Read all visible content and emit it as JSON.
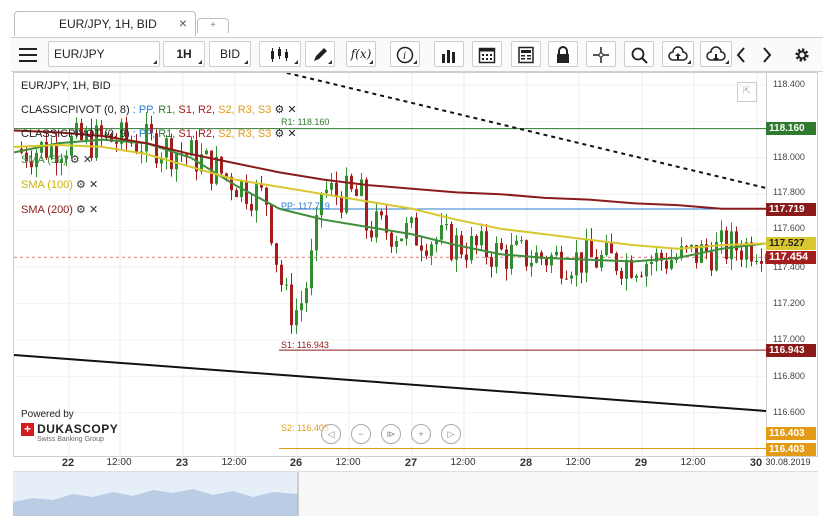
{
  "tab": {
    "title": "EUR/JPY, 1H, BID",
    "close": "×",
    "new_tab": "+"
  },
  "toolbar": {
    "instrument": "EUR/JPY",
    "period": "1H",
    "side": "BID"
  },
  "chart": {
    "title": "EUR/JPY, 1H, BID",
    "pivot1": {
      "name": "CLASSICPIVOT",
      "params": "(0, 8)",
      "sep": ":",
      "levels": [
        "PP,",
        "R1,",
        "S1,",
        "R2,",
        "S2,",
        "R3,",
        "S3"
      ]
    },
    "pivot2": {
      "name": "CLASSICPIVOT",
      "params": "(0, 9)",
      "sep": ":",
      "levels": [
        "PP,",
        "R1,",
        "S1,",
        "R2,",
        "S2,",
        "R3,",
        "S3"
      ]
    },
    "sma50": "SMA (50)",
    "sma100": "SMA (100)",
    "sma200": "SMA (200)",
    "colors": {
      "sma50": "#3e8e3a",
      "sma100": "#d8c72e",
      "sma200": "#8b1a1a",
      "pp": "#2b7bd6",
      "r1": "#2f7a2f",
      "s1": "#8b1a1a",
      "s2": "#e39b16",
      "bull": "#2f8f2f",
      "bear": "#a31d1d"
    },
    "y_ticks": [
      "118.400",
      "118.200",
      "118.000",
      "117.800",
      "117.600",
      "117.400",
      "117.200",
      "117.000",
      "116.800",
      "116.600"
    ],
    "price_tags": {
      "r1": "118.160",
      "sma200": "117.719",
      "sma50": "117.527",
      "last": "117.454",
      "s1": "116.943",
      "s2a": "116.403",
      "s2b": "116.403"
    },
    "level_labels": {
      "r1": "R1: 118.160",
      "pp": "PP: 117.719",
      "s1": "S1: 116.943",
      "s2": "S2: 116.403"
    },
    "x_ticks": [
      {
        "label": "22",
        "bold": true
      },
      {
        "label": "12:00",
        "bold": false
      },
      {
        "label": "23",
        "bold": true
      },
      {
        "label": "12:00",
        "bold": false
      },
      {
        "label": "26",
        "bold": true
      },
      {
        "label": "12:00",
        "bold": false
      },
      {
        "label": "27",
        "bold": true
      },
      {
        "label": "12:00",
        "bold": false
      },
      {
        "label": "28",
        "bold": true
      },
      {
        "label": "12:00",
        "bold": false
      },
      {
        "label": "29",
        "bold": true
      },
      {
        "label": "12:00",
        "bold": false
      },
      {
        "label": "30",
        "bold": true
      },
      {
        "label": "30.08.2019",
        "bold": false
      }
    ],
    "powered_by": "Powered by",
    "brand": "DUKASCOPY",
    "brand_sub": "Swiss Banking Group"
  },
  "chart_data": {
    "type": "candlestick",
    "title": "EUR/JPY, 1H, BID",
    "ylim": [
      116.5,
      118.45
    ],
    "series": [
      {
        "name": "SMA (50)",
        "values": [
          118.03,
          118.08,
          118.1,
          118.08,
          118.0,
          117.85,
          117.72,
          117.66,
          117.62,
          117.58,
          117.52,
          117.47,
          117.45,
          117.44,
          117.43,
          117.45,
          117.5,
          117.53
        ]
      },
      {
        "name": "SMA (100)",
        "values": [
          118.06,
          118.07,
          118.06,
          118.02,
          117.95,
          117.88,
          117.84,
          117.8,
          117.76,
          117.72,
          117.66,
          117.61,
          117.58,
          117.55,
          117.52,
          117.5,
          117.52,
          117.53
        ]
      },
      {
        "name": "SMA (200)",
        "values": [
          118.15,
          118.14,
          118.12,
          118.08,
          118.02,
          117.97,
          117.92,
          117.88,
          117.85,
          117.83,
          117.81,
          117.8,
          117.78,
          117.77,
          117.75,
          117.74,
          117.72,
          117.72
        ]
      }
    ],
    "levels": {
      "R1": 118.16,
      "PP": 117.719,
      "S1": 116.943,
      "S2": 116.403,
      "last": 117.454
    }
  }
}
